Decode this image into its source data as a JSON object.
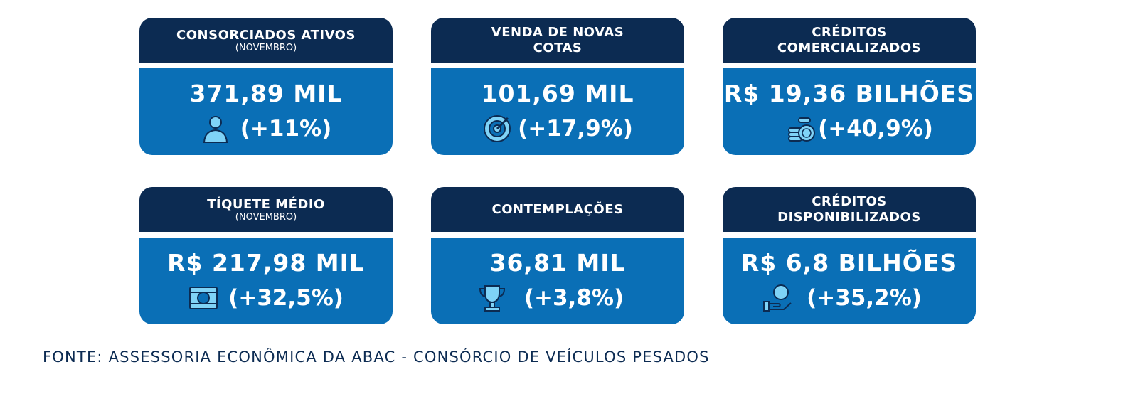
{
  "cards": [
    {
      "title": [
        "CONSORCIADOS ATIVOS"
      ],
      "subtitle": "(NOVEMBRO)",
      "value": "371,89 MIL",
      "change": "(+11%)"
    },
    {
      "title": [
        "VENDA DE NOVAS",
        "COTAS"
      ],
      "value": "101,69 MIL",
      "change": "(+17,9%)"
    },
    {
      "title": [
        "CRÉDITOS",
        "COMERCIALIZADOS"
      ],
      "value": "R$ 19,36 BILHÕES",
      "change": "(+40,9%)"
    },
    {
      "title": [
        "TÍQUETE MÉDIO"
      ],
      "subtitle": "(NOVEMBRO)",
      "value": "R$ 217,98 MIL",
      "change": "(+32,5%)"
    },
    {
      "title": [
        "CONTEMPLAÇÕES"
      ],
      "value": "36,81 MIL",
      "change": "(+3,8%)"
    },
    {
      "title": [
        "CRÉDITOS",
        "DISPONIBILIZADOS"
      ],
      "value": "R$ 6,8 BILHÕES",
      "change": "(+35,2%)"
    }
  ],
  "footer": {
    "source": "FONTE: ASSESSORIA ECONÔMICA DA ABAC - CONSÓRCIO DE VEÍCULOS PESADOS"
  }
}
